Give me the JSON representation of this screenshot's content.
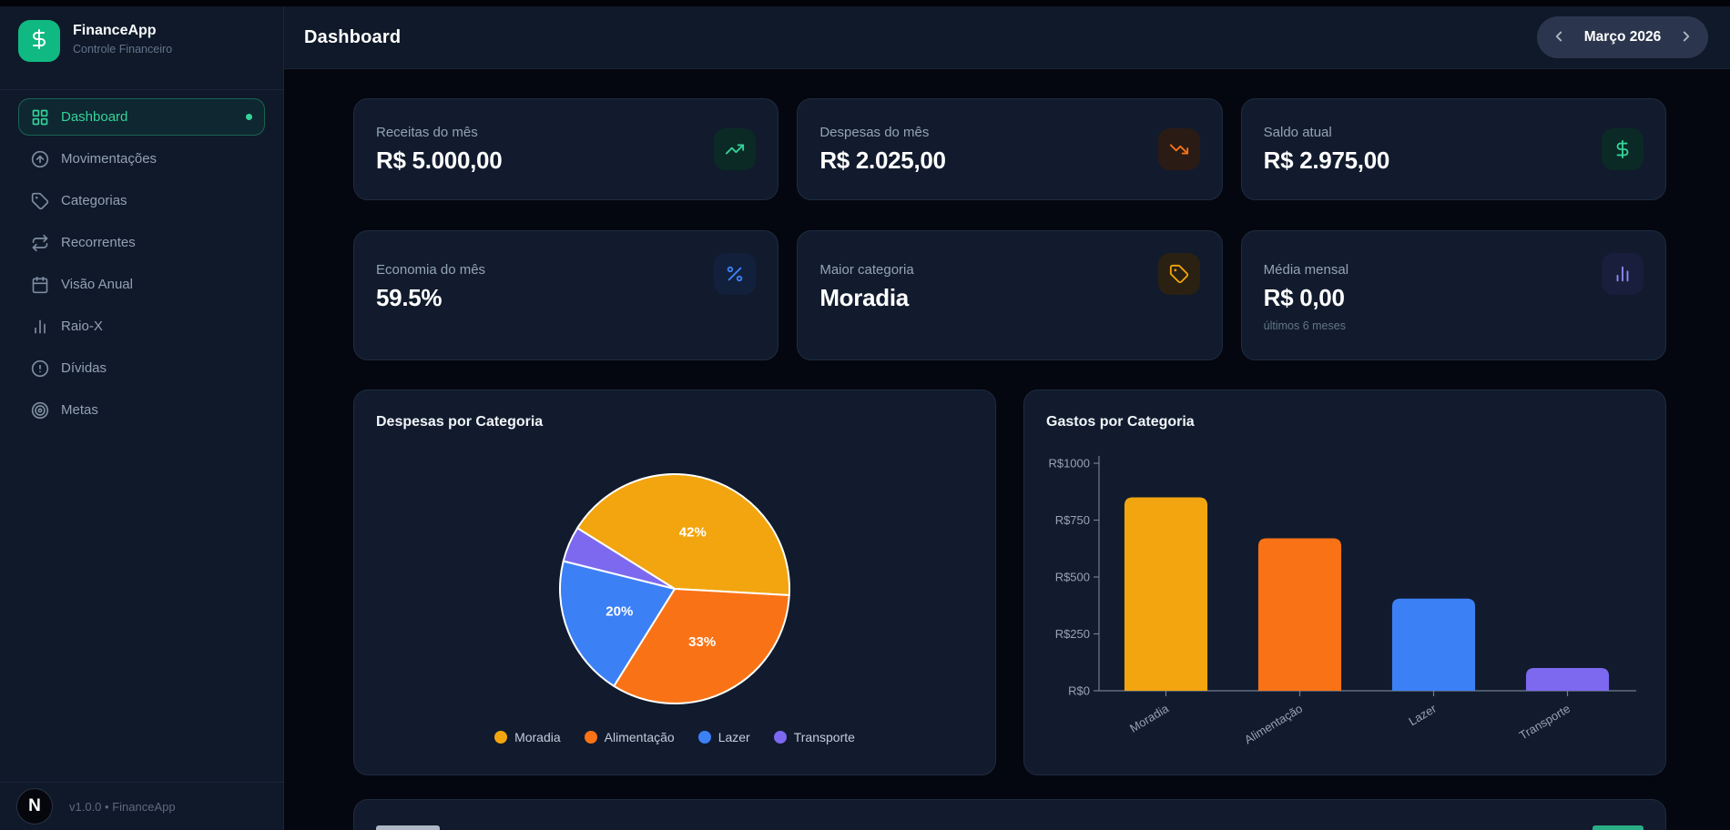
{
  "app": {
    "name": "FinanceApp",
    "tagline": "Controle Financeiro",
    "version_line": "v1.0.0 • FinanceApp",
    "footer_logo_letter": "N"
  },
  "header": {
    "title": "Dashboard",
    "month_label": "Março 2026"
  },
  "sidebar": {
    "items": [
      {
        "label": "Dashboard",
        "icon": "layout-grid-icon",
        "active": true
      },
      {
        "label": "Movimentações",
        "icon": "arrow-up-circle-icon",
        "active": false
      },
      {
        "label": "Categorias",
        "icon": "tag-icon",
        "active": false
      },
      {
        "label": "Recorrentes",
        "icon": "repeat-icon",
        "active": false
      },
      {
        "label": "Visão Anual",
        "icon": "calendar-icon",
        "active": false
      },
      {
        "label": "Raio-X",
        "icon": "bar-chart-icon",
        "active": false
      },
      {
        "label": "Dívidas",
        "icon": "alert-circle-icon",
        "active": false
      },
      {
        "label": "Metas",
        "icon": "target-icon",
        "active": false
      }
    ]
  },
  "stats": [
    {
      "label": "Receitas do mês",
      "value": "R$ 5.000,00",
      "icon": "trending-up-icon",
      "accent": "#34D399"
    },
    {
      "label": "Despesas do mês",
      "value": "R$ 2.025,00",
      "icon": "trending-down-icon",
      "accent": "#F97316"
    },
    {
      "label": "Saldo atual",
      "value": "R$ 2.975,00",
      "icon": "dollar-icon",
      "accent": "#34D399"
    },
    {
      "label": "Economia do mês",
      "value": "59.5%",
      "icon": "percent-icon",
      "accent": "#3B82F6"
    },
    {
      "label": "Maior categoria",
      "value": "Moradia",
      "icon": "tag-icon",
      "accent": "#F5A60B"
    },
    {
      "label": "Média mensal",
      "value": "R$ 0,00",
      "sub": "últimos 6 meses",
      "icon": "chart-column-icon",
      "accent": "#8B8CF8"
    }
  ],
  "chart_data": [
    {
      "type": "pie",
      "title": "Despesas por Categoria",
      "labels": [
        "Moradia",
        "Alimentação",
        "Lazer",
        "Transporte"
      ],
      "values": [
        42,
        33,
        20,
        5
      ],
      "slice_labels": [
        "42%",
        "33%",
        "20%",
        ""
      ],
      "colors": [
        "#F2A50F",
        "#F97316",
        "#3C80F6",
        "#7C69EF"
      ],
      "rotation_deg": -58,
      "legend_position": "bottom",
      "border_color": "#FFFFFF"
    },
    {
      "type": "bar",
      "title": "Gastos por Categoria",
      "categories": [
        "Moradia",
        "Alimentação",
        "Lazer",
        "Transporte"
      ],
      "values": [
        850,
        670,
        405,
        100
      ],
      "colors": [
        "#F2A50F",
        "#F97316",
        "#3C80F6",
        "#7C69EF"
      ],
      "ylim": [
        0,
        1000
      ],
      "ytick_values": [
        1000,
        750,
        500,
        250,
        0
      ],
      "ytick_labels": [
        "R$1000",
        "R$750",
        "R$500",
        "R$250",
        "R$0"
      ],
      "grid": false,
      "legend_position": "none"
    }
  ],
  "colors": {
    "accent_green": "#10B981",
    "background": "#04070F",
    "card": "#111B2D"
  }
}
